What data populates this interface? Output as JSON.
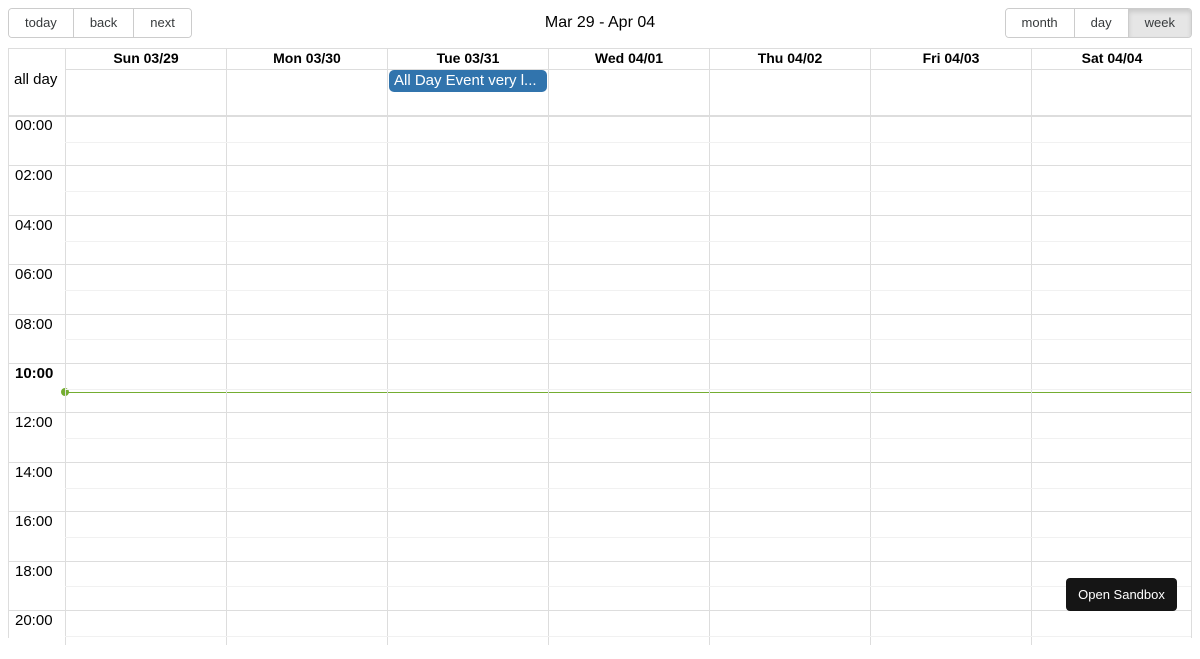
{
  "toolbar": {
    "nav": [
      "today",
      "back",
      "next"
    ],
    "title": "Mar 29 - Apr 04",
    "views": [
      "month",
      "day",
      "week"
    ],
    "active_view": "week"
  },
  "header": {
    "days": [
      "Sun 03/29",
      "Mon 03/30",
      "Tue 03/31",
      "Wed 04/01",
      "Thu 04/02",
      "Fri 04/03",
      "Sat 04/04"
    ]
  },
  "all_day": {
    "label": "all day",
    "events": [
      {
        "title": "All Day Event very long title",
        "display": "All Day Event very l...",
        "day": "Tue 03/31",
        "color": "#3174ad"
      }
    ]
  },
  "time_labels": [
    "00:00",
    "02:00",
    "04:00",
    "06:00",
    "08:00",
    "10:00",
    "12:00",
    "14:00",
    "16:00",
    "18:00",
    "20:00"
  ],
  "current_time_label": "10:00",
  "now_indicator_color": "#74ad31",
  "sandbox_button": "Open Sandbox"
}
